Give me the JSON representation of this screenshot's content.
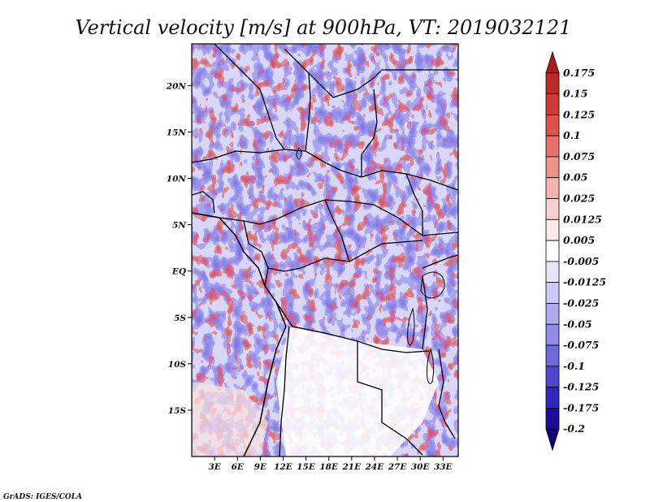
{
  "chart_data": {
    "type": "heatmap",
    "title": "Vertical velocity [m/s] at 900hPa, VT: 2019032121",
    "variable": "Vertical velocity",
    "units": "m/s",
    "level": "900hPa",
    "valid_time": "2019032121",
    "lon_range": [
      0,
      35
    ],
    "lat_range": [
      -20,
      24.5
    ],
    "x_ticks": [
      {
        "value": 3,
        "label": "3E"
      },
      {
        "value": 6,
        "label": "6E"
      },
      {
        "value": 9,
        "label": "9E"
      },
      {
        "value": 12,
        "label": "12E"
      },
      {
        "value": 15,
        "label": "15E"
      },
      {
        "value": 18,
        "label": "18E"
      },
      {
        "value": 21,
        "label": "21E"
      },
      {
        "value": 24,
        "label": "24E"
      },
      {
        "value": 27,
        "label": "27E"
      },
      {
        "value": 30,
        "label": "30E"
      },
      {
        "value": 33,
        "label": "33E"
      }
    ],
    "y_ticks": [
      {
        "value": 20,
        "label": "20N"
      },
      {
        "value": 15,
        "label": "15N"
      },
      {
        "value": 10,
        "label": "10N"
      },
      {
        "value": 5,
        "label": "5N"
      },
      {
        "value": 0,
        "label": "EQ"
      },
      {
        "value": -5,
        "label": "5S"
      },
      {
        "value": -10,
        "label": "10S"
      },
      {
        "value": -15,
        "label": "15S"
      }
    ],
    "colorbar": {
      "labels": [
        "0.175",
        "0.15",
        "0.125",
        "0.1",
        "0.075",
        "0.05",
        "0.025",
        "0.0125",
        "0.005",
        "-0.005",
        "-0.0125",
        "-0.025",
        "-0.05",
        "-0.075",
        "-0.1",
        "-0.125",
        "-0.175",
        "-0.2"
      ],
      "colors": [
        "#a81c1c",
        "#bd2a28",
        "#d03a36",
        "#de5349",
        "#e6716a",
        "#ee928d",
        "#f4b2ae",
        "#f8cfcc",
        "#fce9e7",
        "#ffffff",
        "#e6e6fb",
        "#cccaf6",
        "#aeaaef",
        "#8f89e8",
        "#6e68dd",
        "#4d46cf",
        "#3026bc",
        "#1a0d9e",
        "#0d0580"
      ]
    }
  },
  "credit": "GrADS: IGES/COLA"
}
